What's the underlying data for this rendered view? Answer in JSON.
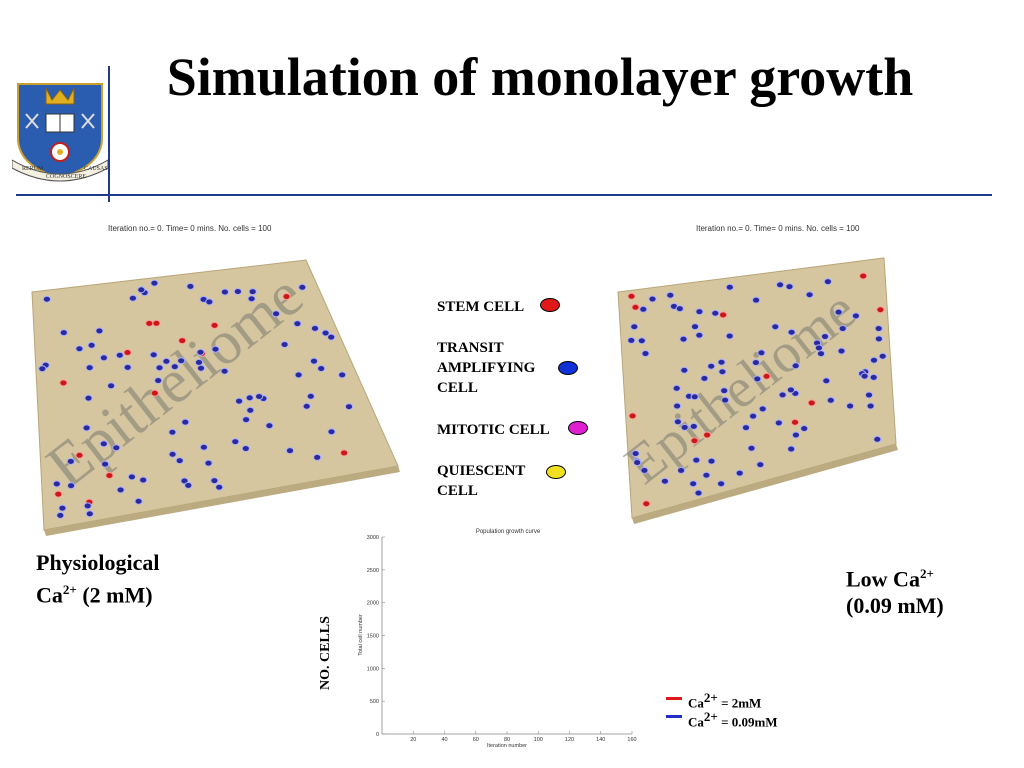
{
  "slide": {
    "title": "Simulation of monolayer growth"
  },
  "crest": {
    "motto_left": "RERUM",
    "motto_mid": "COGNOSCERE",
    "motto_right": "CAUSAS"
  },
  "panels": {
    "left": {
      "iteration_text": "Iteration no.= 0. Time= 0 mins. No. cells = 100",
      "watermark": "Epitheliome",
      "caption_line1": "Physiological",
      "caption_line2_a": "Ca",
      "caption_line2_sup": "2+",
      "caption_line2_b": " (2 mM)"
    },
    "right": {
      "iteration_text": "Iteration no.= 0. Time= 0 mins. No. cells = 100",
      "watermark": "Epitheliome",
      "caption_line1_a": "Low Ca",
      "caption_line1_sup": "2+",
      "caption_line2": "(0.09 mM)"
    }
  },
  "legend": {
    "items": [
      {
        "line1": "STEM CELL",
        "line2": "",
        "line3": "",
        "color": "#e01818"
      },
      {
        "line1": "TRANSIT",
        "line2": "AMPLIFYING",
        "line3": "CELL",
        "color": "#1030d8"
      },
      {
        "line1": "MITOTIC CELL",
        "line2": "",
        "line3": "",
        "color": "#e020d0"
      },
      {
        "line1": "QUIESCENT",
        "line2": "CELL",
        "line3": "",
        "color": "#f0e020"
      }
    ]
  },
  "graph": {
    "outer_ylabel": "NO. CELLS",
    "legend": [
      {
        "label_a": "Ca",
        "label_sup": "2+",
        "label_b": " = 2mM",
        "color": "#e01818"
      },
      {
        "label_a": "Ca",
        "label_sup": "2+",
        "label_b": " = 0.09mM",
        "color": "#2030c8"
      }
    ]
  },
  "chart_data": {
    "type": "line",
    "title": "Population growth curve",
    "xlabel": "Iteration number",
    "ylabel": "Total cell number",
    "xlim": [
      0,
      160
    ],
    "ylim": [
      0,
      3000
    ],
    "xticks": [
      "20",
      "40",
      "60",
      "80",
      "100",
      "120",
      "140",
      "160"
    ],
    "yticks": [
      "0",
      "500",
      "1000",
      "1500",
      "2000",
      "2500",
      "3000"
    ],
    "grid": false,
    "series": []
  }
}
